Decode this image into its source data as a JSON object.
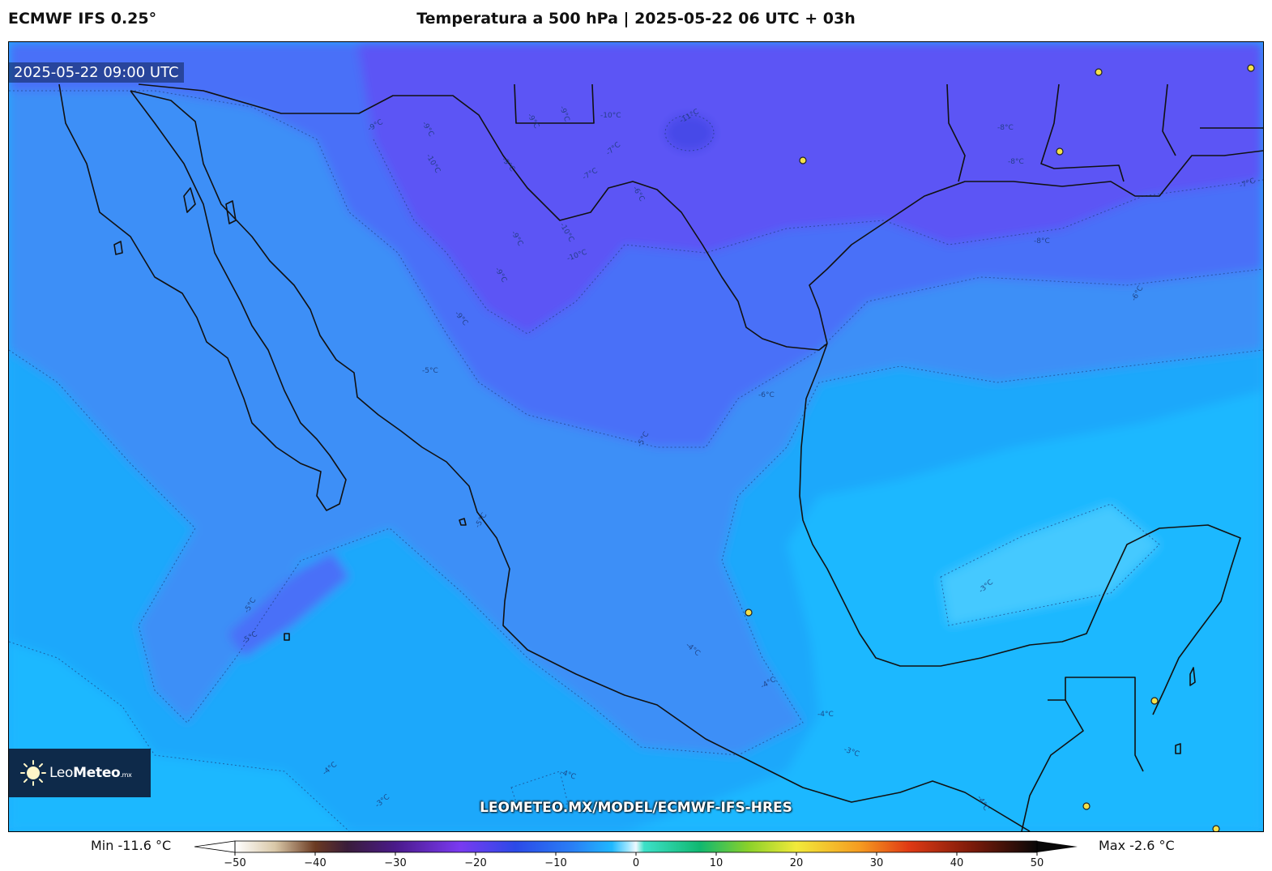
{
  "header": {
    "model": "ECMWF IFS 0.25°",
    "title": "Temperatura a 500 hPa | 2025-05-22 06 UTC + 03h"
  },
  "map": {
    "valid_time": "2025-05-22 09:00 UTC",
    "watermark": "LEOMETEO.MX/MODEL/ECMWF-IFS-HRES",
    "logo": {
      "name": "Leo",
      "bold": "Meteo",
      "suffix": ".mx"
    },
    "contour_labels": [
      "-11°C",
      "-10°C",
      "-10°C",
      "-10°C",
      "-10°C",
      "-9°C",
      "-9°C",
      "-9°C",
      "-9°C",
      "-9°C",
      "-9°C",
      "-9°C",
      "-9°C",
      "-8°C",
      "-8°C",
      "-8°C",
      "-7°C",
      "-7°C",
      "-7°C",
      "-6°C",
      "-6°C",
      "-6°C",
      "-5°C",
      "-5°C",
      "-5°C",
      "-5°C",
      "-5°C",
      "-4°C",
      "-4°C",
      "-4°C",
      "-4°C",
      "-4°C",
      "-4°C",
      "-3°C",
      "-3°C",
      "-3°C"
    ],
    "colors": {
      "coldest": "#5c55f5",
      "cold": "#4a70f8",
      "mid": "#3d8ff7",
      "cool": "#1fa8fb",
      "mild": "#1fb8ff",
      "warmest": "#45c9ff",
      "coast": "#111111",
      "city_marker": "#f4e04a"
    }
  },
  "colorbar": {
    "min_label": "Min -11.6 °C",
    "max_label": "Max -2.6 °C",
    "range": [
      -50,
      50
    ],
    "ticks": [
      "−50",
      "−40",
      "−30",
      "−20",
      "−10",
      "0",
      "10",
      "20",
      "30",
      "40",
      "50"
    ],
    "tick_values": [
      -50,
      -40,
      -30,
      -20,
      -10,
      0,
      10,
      20,
      30,
      40,
      50
    ],
    "stops": [
      {
        "v": -50,
        "c": "#ffffff"
      },
      {
        "v": -45,
        "c": "#d9c8a8"
      },
      {
        "v": -40,
        "c": "#6b3a22"
      },
      {
        "v": -36,
        "c": "#3a1c3a"
      },
      {
        "v": -30,
        "c": "#4a1a8a"
      },
      {
        "v": -22,
        "c": "#7a3af0"
      },
      {
        "v": -15,
        "c": "#2b4ae8"
      },
      {
        "v": -8,
        "c": "#2a7ef5"
      },
      {
        "v": -3,
        "c": "#1fb8ff"
      },
      {
        "v": -1,
        "c": "#9ee6ff"
      },
      {
        "v": 0,
        "c": "#f0f8ff"
      },
      {
        "v": 1,
        "c": "#3de0c8"
      },
      {
        "v": 8,
        "c": "#10b870"
      },
      {
        "v": 14,
        "c": "#8ad12a"
      },
      {
        "v": 20,
        "c": "#f2ea3a"
      },
      {
        "v": 28,
        "c": "#f59a20"
      },
      {
        "v": 34,
        "c": "#e03a14"
      },
      {
        "v": 42,
        "c": "#7a1a0a"
      },
      {
        "v": 50,
        "c": "#080808"
      }
    ]
  }
}
